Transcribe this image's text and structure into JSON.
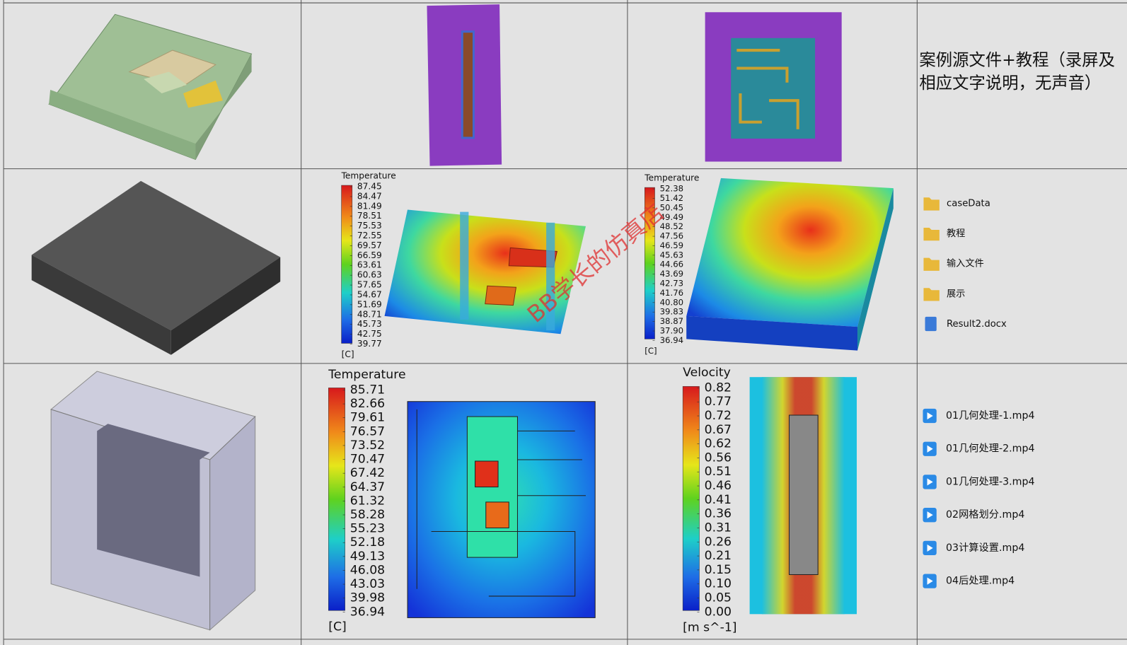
{
  "intro_text": "案例源文件+教程（录屏及相应文字说明，无声音）",
  "watermark": "BB学长的仿真店",
  "legends": [
    {
      "title": "Temperature",
      "unit": "[C]",
      "labels": [
        "87.45",
        "84.47",
        "81.49",
        "78.51",
        "75.53",
        "72.55",
        "69.57",
        "66.59",
        "63.61",
        "60.63",
        "57.65",
        "54.67",
        "51.69",
        "48.71",
        "45.73",
        "42.75",
        "39.77"
      ]
    },
    {
      "title": "Temperature",
      "unit": "[C]",
      "labels": [
        "52.38",
        "51.42",
        "50.45",
        "49.49",
        "48.52",
        "47.56",
        "46.59",
        "45.63",
        "44.66",
        "43.69",
        "42.73",
        "41.76",
        "40.80",
        "39.83",
        "38.87",
        "37.90",
        "36.94"
      ]
    },
    {
      "title": "Temperature",
      "unit": "[C]",
      "labels": [
        "85.71",
        "82.66",
        "79.61",
        "76.57",
        "73.52",
        "70.47",
        "67.42",
        "64.37",
        "61.32",
        "58.28",
        "55.23",
        "52.18",
        "49.13",
        "46.08",
        "43.03",
        "39.98",
        "36.94"
      ]
    },
    {
      "title": "Velocity",
      "unit": "[m s^-1]",
      "labels": [
        "0.82",
        "0.77",
        "0.72",
        "0.67",
        "0.62",
        "0.56",
        "0.51",
        "0.46",
        "0.41",
        "0.36",
        "0.31",
        "0.26",
        "0.21",
        "0.15",
        "0.10",
        "0.05",
        "0.00"
      ]
    }
  ],
  "folders": [
    "caseData",
    "教程",
    "输入文件",
    "展示",
    "Result2.docx"
  ],
  "videos": [
    "01几何处理-1.mp4",
    "01几何处理-2.mp4",
    "01几何处理-3.mp4",
    "02网格划分.mp4",
    "03计算设置.mp4",
    "04后处理.mp4"
  ]
}
